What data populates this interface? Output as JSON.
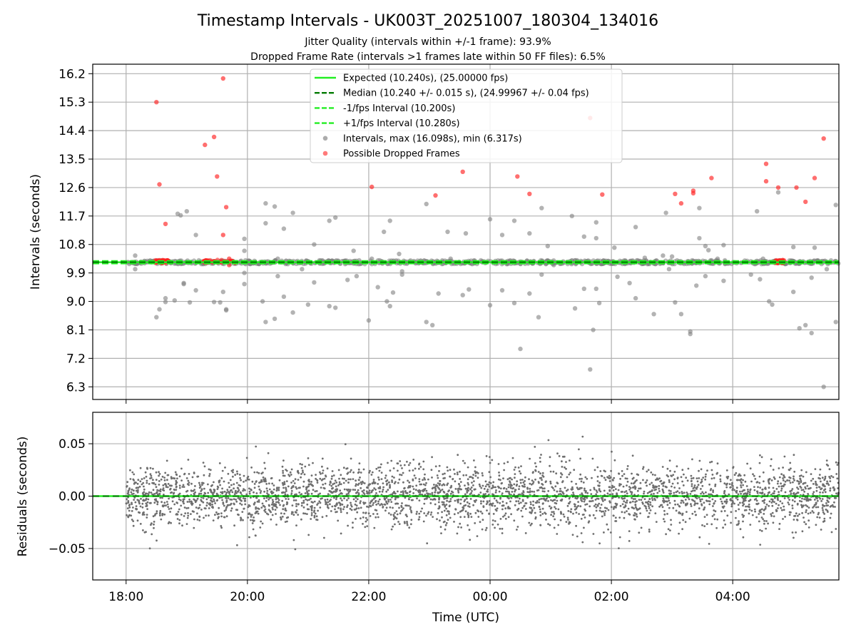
{
  "chart_data": {
    "type": "scatter",
    "title": "Timestamp Intervals - UK003T_20251007_180304_134016",
    "subtitles": [
      "Jitter Quality (intervals within +/-1 frame): 93.9%",
      "Dropped Frame Rate (intervals >1 frames late within 50 FF files): 6.5%"
    ],
    "xlabel": "Time (UTC)",
    "xticks": [
      "18:00",
      "20:00",
      "22:00",
      "00:00",
      "02:00",
      "04:00"
    ],
    "xlim_hours": [
      -0.55,
      11.75
    ],
    "xtick_hours": [
      0,
      2,
      4,
      6,
      8,
      10
    ],
    "top": {
      "ylabel": "Intervals (seconds)",
      "ylim": [
        5.9,
        16.5
      ],
      "yticks": [
        "6.3",
        "7.2",
        "8.1",
        "9.0",
        "9.9",
        "10.8",
        "11.7",
        "12.6",
        "13.5",
        "14.4",
        "15.3",
        "16.2"
      ],
      "ytick_values": [
        6.3,
        7.2,
        8.1,
        9.0,
        9.9,
        10.8,
        11.7,
        12.6,
        13.5,
        14.4,
        15.3,
        16.2
      ],
      "expected": 10.24,
      "median": 10.24,
      "lower": 10.2,
      "upper": 10.28,
      "legend": [
        {
          "label": "Expected (10.240s), (25.00000 fps)",
          "style": "solid",
          "color": "#22ee22"
        },
        {
          "label": "Median (10.240 +/- 0.015 s), (24.99967 +/- 0.04 fps)",
          "style": "dashed",
          "color": "#007a00"
        },
        {
          "label": "-1/fps Interval (10.200s)",
          "style": "dashed",
          "color": "#22ee22"
        },
        {
          "label": "+1/fps Interval (10.280s)",
          "style": "dashed",
          "color": "#22ee22"
        },
        {
          "label": "Intervals, max (16.098s), min (6.317s)",
          "style": "marker",
          "color": "#808080"
        },
        {
          "label": "Possible Dropped Frames",
          "style": "marker",
          "color": "#ff3333"
        }
      ],
      "outliers_gray": [
        [
          0.15,
          10.45
        ],
        [
          0.15,
          10.02
        ],
        [
          0.5,
          8.5
        ],
        [
          0.55,
          8.75
        ],
        [
          0.65,
          8.98
        ],
        [
          0.65,
          9.1
        ],
        [
          0.8,
          9.03
        ],
        [
          0.85,
          11.77
        ],
        [
          0.9,
          11.72
        ],
        [
          0.95,
          9.58
        ],
        [
          0.95,
          9.55
        ],
        [
          1.0,
          11.85
        ],
        [
          1.05,
          8.97
        ],
        [
          1.15,
          9.35
        ],
        [
          1.15,
          11.1
        ],
        [
          1.45,
          8.98
        ],
        [
          1.55,
          8.97
        ],
        [
          1.6,
          9.3
        ],
        [
          1.65,
          8.75
        ],
        [
          1.65,
          8.72
        ],
        [
          1.95,
          10.98
        ],
        [
          1.95,
          10.6
        ],
        [
          1.95,
          9.9
        ],
        [
          1.95,
          9.55
        ],
        [
          2.25,
          9.0
        ],
        [
          2.3,
          11.47
        ],
        [
          2.3,
          8.35
        ],
        [
          2.3,
          12.1
        ],
        [
          2.45,
          12.0
        ],
        [
          2.45,
          8.45
        ],
        [
          2.5,
          10.35
        ],
        [
          2.5,
          9.8
        ],
        [
          2.6,
          11.3
        ],
        [
          2.6,
          9.15
        ],
        [
          2.75,
          11.8
        ],
        [
          2.75,
          8.65
        ],
        [
          2.9,
          10.02
        ],
        [
          3.0,
          8.9
        ],
        [
          3.1,
          10.8
        ],
        [
          3.1,
          9.6
        ],
        [
          3.35,
          11.55
        ],
        [
          3.35,
          8.85
        ],
        [
          3.45,
          8.8
        ],
        [
          3.45,
          11.65
        ],
        [
          3.65,
          9.68
        ],
        [
          3.75,
          10.6
        ],
        [
          3.8,
          9.8
        ],
        [
          4.0,
          8.4
        ],
        [
          4.05,
          10.35
        ],
        [
          4.15,
          9.45
        ],
        [
          4.25,
          11.2
        ],
        [
          4.3,
          9.0
        ],
        [
          4.35,
          8.85
        ],
        [
          4.35,
          11.55
        ],
        [
          4.4,
          9.28
        ],
        [
          4.5,
          10.5
        ],
        [
          4.55,
          9.95
        ],
        [
          4.55,
          9.85
        ],
        [
          4.95,
          12.08
        ],
        [
          4.95,
          8.35
        ],
        [
          5.05,
          8.25
        ],
        [
          5.15,
          9.25
        ],
        [
          5.3,
          11.2
        ],
        [
          5.35,
          10.35
        ],
        [
          5.55,
          9.2
        ],
        [
          5.6,
          11.15
        ],
        [
          5.65,
          9.38
        ],
        [
          6.0,
          11.6
        ],
        [
          6.0,
          8.88
        ],
        [
          6.2,
          11.1
        ],
        [
          6.2,
          9.35
        ],
        [
          6.4,
          11.55
        ],
        [
          6.4,
          8.95
        ],
        [
          6.5,
          7.5
        ],
        [
          6.65,
          11.15
        ],
        [
          6.65,
          9.25
        ],
        [
          6.8,
          8.5
        ],
        [
          6.85,
          11.95
        ],
        [
          6.85,
          9.85
        ],
        [
          6.95,
          10.75
        ],
        [
          7.05,
          10.15
        ],
        [
          7.35,
          11.7
        ],
        [
          7.4,
          8.78
        ],
        [
          7.55,
          11.05
        ],
        [
          7.55,
          9.4
        ],
        [
          7.65,
          6.85
        ],
        [
          7.7,
          8.1
        ],
        [
          7.75,
          9.4
        ],
        [
          7.75,
          11.5
        ],
        [
          7.75,
          11.0
        ],
        [
          7.8,
          8.95
        ],
        [
          8.05,
          10.7
        ],
        [
          8.1,
          9.78
        ],
        [
          8.3,
          9.58
        ],
        [
          8.4,
          11.35
        ],
        [
          8.4,
          9.1
        ],
        [
          8.55,
          10.38
        ],
        [
          8.7,
          8.6
        ],
        [
          8.85,
          10.45
        ],
        [
          8.9,
          11.8
        ],
        [
          8.95,
          10.02
        ],
        [
          9.0,
          10.42
        ],
        [
          9.05,
          8.97
        ],
        [
          9.15,
          8.6
        ],
        [
          9.3,
          7.97
        ],
        [
          9.3,
          8.05
        ],
        [
          9.4,
          9.5
        ],
        [
          9.45,
          11.0
        ],
        [
          9.45,
          11.95
        ],
        [
          9.55,
          10.75
        ],
        [
          9.55,
          9.8
        ],
        [
          9.6,
          10.62
        ],
        [
          9.75,
          10.35
        ],
        [
          9.85,
          10.78
        ],
        [
          9.85,
          9.65
        ],
        [
          10.3,
          9.85
        ],
        [
          10.4,
          11.85
        ],
        [
          10.45,
          9.7
        ],
        [
          10.5,
          10.35
        ],
        [
          10.6,
          9.0
        ],
        [
          10.65,
          8.9
        ],
        [
          10.75,
          12.45
        ],
        [
          11.0,
          10.72
        ],
        [
          11.0,
          9.3
        ],
        [
          11.1,
          8.15
        ],
        [
          11.2,
          8.25
        ],
        [
          11.3,
          8.0
        ],
        [
          11.3,
          9.75
        ],
        [
          11.35,
          10.7
        ],
        [
          11.5,
          6.3
        ],
        [
          11.55,
          10.02
        ],
        [
          11.7,
          12.05
        ],
        [
          11.7,
          8.35
        ]
      ],
      "outliers_red": [
        [
          0.5,
          15.3
        ],
        [
          0.55,
          12.7
        ],
        [
          0.65,
          11.45
        ],
        [
          1.3,
          13.95
        ],
        [
          1.45,
          14.2
        ],
        [
          1.5,
          12.95
        ],
        [
          1.6,
          16.05
        ],
        [
          1.6,
          11.1
        ],
        [
          1.65,
          11.98
        ],
        [
          1.7,
          10.35
        ],
        [
          1.7,
          10.15
        ],
        [
          4.05,
          12.62
        ],
        [
          5.1,
          12.35
        ],
        [
          5.55,
          13.1
        ],
        [
          6.45,
          12.95
        ],
        [
          6.65,
          12.4
        ],
        [
          7.65,
          14.8
        ],
        [
          7.85,
          12.38
        ],
        [
          9.05,
          12.4
        ],
        [
          9.15,
          12.1
        ],
        [
          9.35,
          12.5
        ],
        [
          9.35,
          12.42
        ],
        [
          9.65,
          12.9
        ],
        [
          10.55,
          12.8
        ],
        [
          10.55,
          13.35
        ],
        [
          10.75,
          12.6
        ],
        [
          11.05,
          12.6
        ],
        [
          11.2,
          12.15
        ],
        [
          11.35,
          12.9
        ],
        [
          11.5,
          14.15
        ]
      ],
      "dropped_clusters": [
        [
          0.48,
          0.7
        ],
        [
          1.27,
          1.8
        ],
        [
          10.7,
          10.85
        ]
      ]
    },
    "bottom": {
      "ylabel": "Residuals (seconds)",
      "ylim": [
        -0.08,
        0.08
      ],
      "yticks": [
        "0.05",
        "0.00",
        "−0.05"
      ],
      "ytick_values": [
        0.05,
        0.0,
        -0.05
      ],
      "residual_sd": 0.015,
      "residual_points": 3400
    }
  }
}
